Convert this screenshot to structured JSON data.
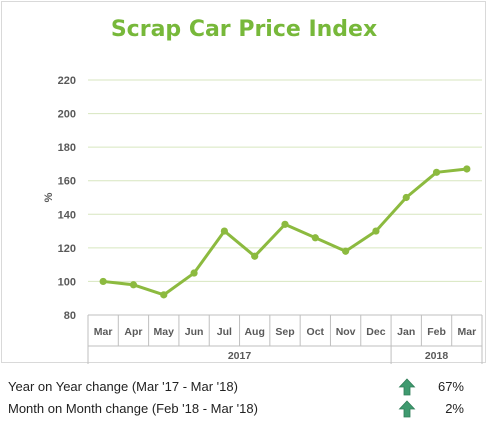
{
  "chart_data": {
    "type": "line",
    "title": "Scrap Car Price Index",
    "ylabel": "%",
    "ylim": [
      80,
      220
    ],
    "yticks": [
      80,
      100,
      120,
      140,
      160,
      180,
      200,
      220
    ],
    "categories": [
      "Mar",
      "Apr",
      "May",
      "Jun",
      "Jul",
      "Aug",
      "Sep",
      "Oct",
      "Nov",
      "Dec",
      "Jan",
      "Feb",
      "Mar"
    ],
    "year_groups": [
      {
        "label": "2017",
        "count": 10
      },
      {
        "label": "2018",
        "count": 3
      }
    ],
    "series": [
      {
        "values": [
          100,
          98,
          92,
          105,
          130,
          115,
          134,
          126,
          118,
          130,
          150,
          165,
          167
        ]
      }
    ],
    "grid": true,
    "legend": "none",
    "colors": {
      "line": "#8cba3f",
      "title": "#77b83a",
      "grid": "#d7e6bf",
      "axis_text": "#595959"
    }
  },
  "summary": {
    "yoy_label": "Year on Year change (Mar '17 - Mar '18)",
    "yoy_value": "67%",
    "mom_label": "Month on Month change (Feb '18 - Mar '18)",
    "mom_value": "2%",
    "arrow_icon": "up-arrow-icon",
    "arrow_color": "#3f9a6f"
  }
}
